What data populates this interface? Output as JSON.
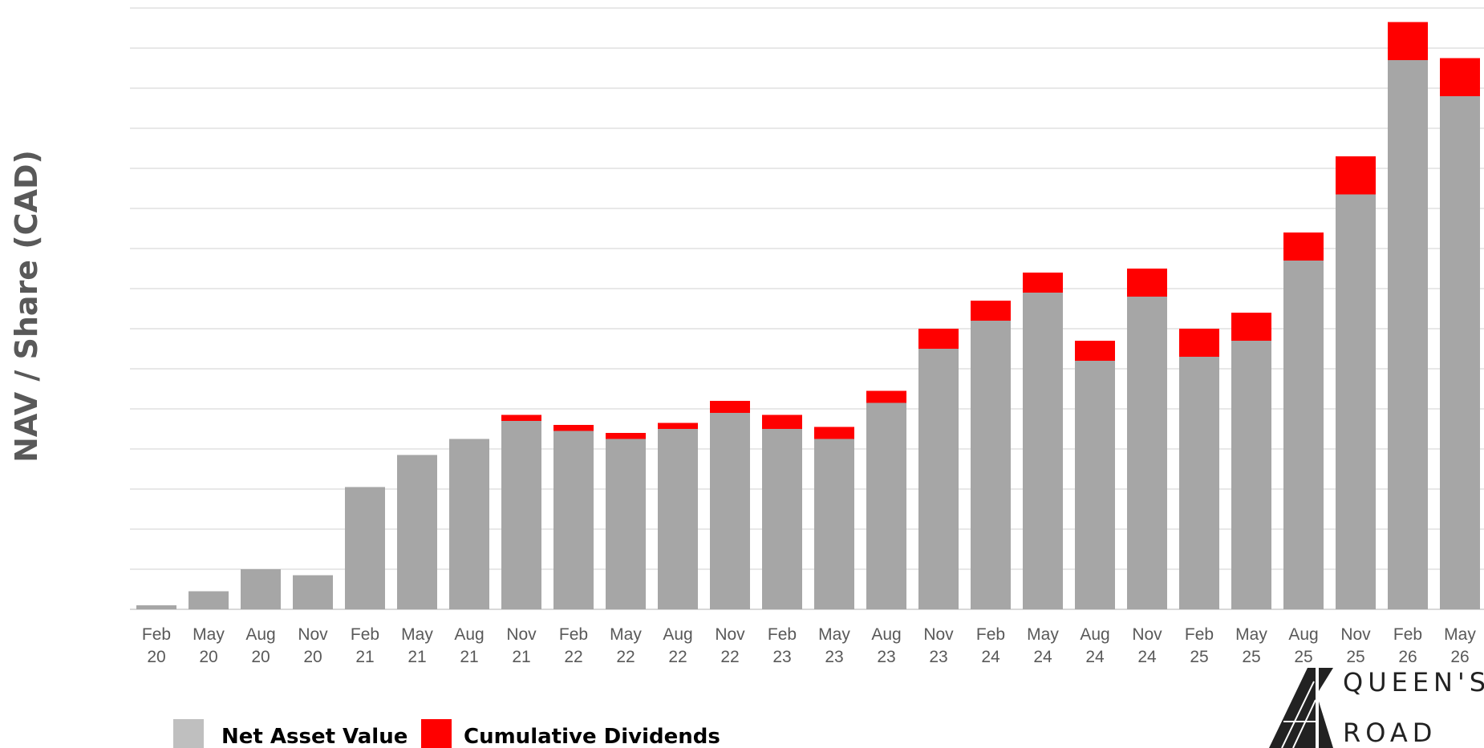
{
  "chart_data": {
    "type": "bar",
    "stacked": true,
    "title": "",
    "xlabel": "",
    "ylabel": "NAV / Share (CAD)",
    "categories": [
      [
        "Feb",
        "20"
      ],
      [
        "May",
        "20"
      ],
      [
        "Aug",
        "20"
      ],
      [
        "Nov",
        "20"
      ],
      [
        "Feb",
        "21"
      ],
      [
        "May",
        "21"
      ],
      [
        "Aug",
        "21"
      ],
      [
        "Nov",
        "21"
      ],
      [
        "Feb",
        "22"
      ],
      [
        "May",
        "22"
      ],
      [
        "Aug",
        "22"
      ],
      [
        "Nov",
        "22"
      ],
      [
        "Feb",
        "23"
      ],
      [
        "May",
        "23"
      ],
      [
        "Aug",
        "23"
      ],
      [
        "Nov",
        "23"
      ],
      [
        "Feb",
        "24"
      ],
      [
        "May",
        "24"
      ],
      [
        "Aug",
        "24"
      ],
      [
        "Nov",
        "24"
      ],
      [
        "Feb",
        "25"
      ],
      [
        "May",
        "25"
      ],
      [
        "Aug",
        "25"
      ],
      [
        "Nov",
        "25"
      ],
      [
        "Feb",
        "26"
      ],
      [
        "May",
        "26"
      ]
    ],
    "ylim": [
      0,
      15
    ],
    "grid": true,
    "legend": "bottom-left",
    "series": [
      {
        "name": "Net Asset Value",
        "color": "#A6A6A6",
        "values": [
          0.1,
          0.45,
          1.0,
          0.85,
          3.05,
          3.85,
          4.25,
          4.7,
          4.45,
          4.25,
          4.5,
          4.9,
          4.5,
          4.25,
          5.15,
          6.5,
          7.2,
          7.9,
          6.2,
          7.8,
          6.3,
          6.7,
          8.7,
          10.35,
          13.7,
          12.8
        ]
      },
      {
        "name": "Cumulative Dividends",
        "color": "#FF0000",
        "values": [
          0,
          0,
          0,
          0,
          0,
          0,
          0,
          0.15,
          0.15,
          0.15,
          0.15,
          0.3,
          0.35,
          0.3,
          0.3,
          0.5,
          0.5,
          0.5,
          0.5,
          0.7,
          0.7,
          0.7,
          0.7,
          0.95,
          0.95,
          0.95
        ]
      }
    ]
  },
  "logo": {
    "name": "logo-icon",
    "line1": "QUEEN'S",
    "line2": "ROAD"
  }
}
